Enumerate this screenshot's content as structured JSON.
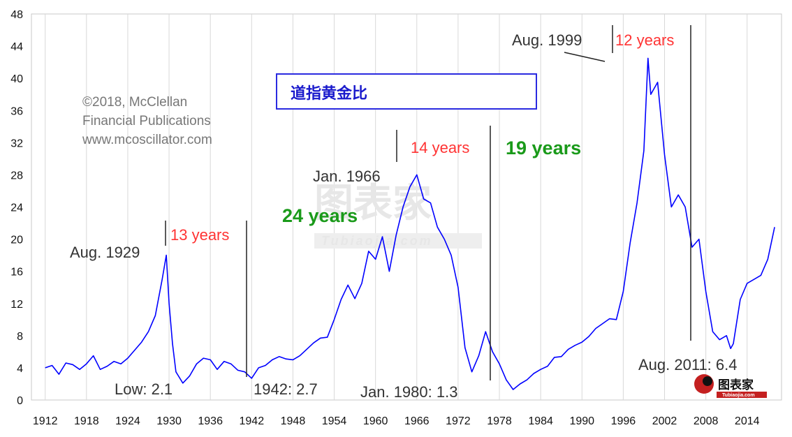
{
  "chart_data": {
    "type": "line",
    "title": "道指黄金比",
    "xlabel": "",
    "ylabel": "",
    "ylim": [
      0,
      48
    ],
    "xlim": [
      1910,
      2019
    ],
    "grid": "vertical",
    "y_ticks": [
      0,
      4,
      8,
      12,
      16,
      20,
      24,
      28,
      32,
      36,
      40,
      44,
      48
    ],
    "x_ticks": [
      1912,
      1918,
      1924,
      1930,
      1936,
      1942,
      1948,
      1954,
      1960,
      1966,
      1972,
      1978,
      1984,
      1990,
      1996,
      2002,
      2008,
      2014
    ],
    "series": [
      {
        "name": "",
        "color": "#0000ff",
        "x": [
          1912.0,
          1913.0,
          1914.0,
          1915.0,
          1916.0,
          1917.0,
          1918.0,
          1919.0,
          1920.0,
          1921.0,
          1922.0,
          1923.0,
          1924.0,
          1925.0,
          1926.0,
          1927.0,
          1928.0,
          1929.0,
          1929.6,
          1930.0,
          1930.5,
          1931.0,
          1932.0,
          1933.0,
          1934.0,
          1935.0,
          1936.0,
          1937.0,
          1938.0,
          1939.0,
          1940.0,
          1941.0,
          1942.0,
          1943.0,
          1944.0,
          1945.0,
          1946.0,
          1947.0,
          1948.0,
          1949.0,
          1950.0,
          1951.0,
          1952.0,
          1953.0,
          1954.0,
          1955.0,
          1956.0,
          1957.0,
          1958.0,
          1959.0,
          1960.0,
          1961.0,
          1962.0,
          1963.0,
          1964.0,
          1965.0,
          1966.0,
          1967.0,
          1968.0,
          1969.0,
          1970.0,
          1971.0,
          1972.0,
          1973.0,
          1974.0,
          1975.0,
          1976.0,
          1977.0,
          1978.0,
          1979.0,
          1980.0,
          1981.0,
          1982.0,
          1983.0,
          1984.0,
          1985.0,
          1986.0,
          1987.0,
          1988.0,
          1989.0,
          1990.0,
          1991.0,
          1992.0,
          1993.0,
          1994.0,
          1995.0,
          1996.0,
          1997.0,
          1998.0,
          1999.0,
          1999.6,
          2000.0,
          2001.0,
          2002.0,
          2003.0,
          2004.0,
          2005.0,
          2006.0,
          2007.0,
          2008.0,
          2009.0,
          2010.0,
          2011.0,
          2011.6,
          2012.0,
          2013.0,
          2014.0,
          2015.0,
          2016.0,
          2017.0,
          2018.0
        ],
        "values": [
          4.0,
          4.3,
          3.2,
          4.6,
          4.4,
          3.8,
          4.5,
          5.5,
          3.8,
          4.2,
          4.8,
          4.5,
          5.2,
          6.2,
          7.2,
          8.5,
          10.5,
          15.0,
          18.0,
          12.0,
          7.0,
          3.5,
          2.1,
          3.0,
          4.5,
          5.2,
          5.0,
          3.8,
          4.8,
          4.5,
          3.7,
          3.5,
          2.7,
          4.0,
          4.3,
          5.0,
          5.4,
          5.1,
          5.0,
          5.5,
          6.3,
          7.1,
          7.7,
          7.8,
          10.0,
          12.5,
          14.3,
          12.6,
          14.5,
          18.5,
          17.5,
          20.3,
          16.0,
          20.5,
          24.0,
          26.5,
          28.0,
          25.0,
          24.5,
          21.5,
          20.0,
          18.0,
          14.0,
          6.5,
          3.5,
          5.5,
          8.5,
          6.0,
          4.5,
          2.5,
          1.3,
          2.0,
          2.5,
          3.3,
          3.8,
          4.2,
          5.3,
          5.4,
          6.3,
          6.8,
          7.2,
          7.9,
          8.9,
          9.5,
          10.1,
          10.0,
          13.5,
          19.5,
          24.5,
          31.0,
          42.5,
          38.0,
          39.5,
          30.5,
          24.0,
          25.5,
          24.0,
          19.0,
          20.0,
          13.5,
          8.5,
          7.5,
          8.0,
          6.4,
          7.0,
          12.5,
          14.5,
          15.0,
          15.5,
          17.5,
          21.5
        ]
      }
    ],
    "annotations": {
      "copyright_1": "©2018, McClellan",
      "copyright_2": "Financial Publications",
      "copyright_3": "www.mcoscillator.com",
      "aug1929": "Aug. 1929",
      "low": "Low: 2.1",
      "yrs13": "13 years",
      "yrs1942": "1942: 2.7",
      "yrs24": "24 years",
      "jan1966": "Jan. 1966",
      "yrs14": "14 years",
      "jan1980": "Jan. 1980: 1.3",
      "yrs19": "19 years",
      "aug1999": "Aug. 1999",
      "yrs12": "12 years",
      "aug2011": "Aug. 2011: 6.4"
    },
    "watermark": {
      "main": "图表家",
      "sub": "Tubiaojia.com"
    }
  }
}
